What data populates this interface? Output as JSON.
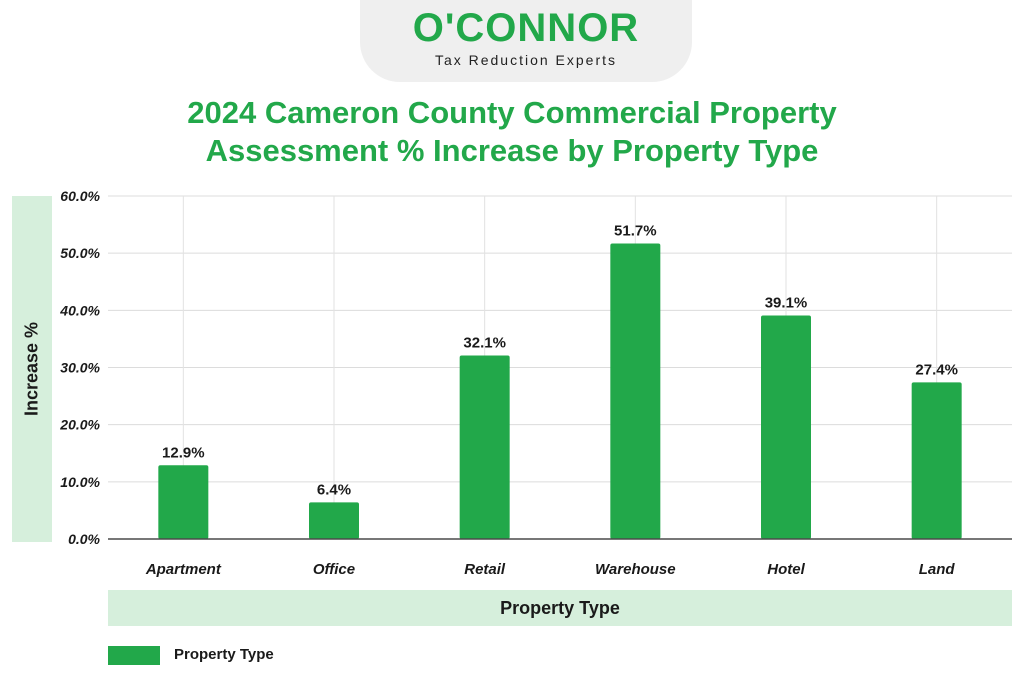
{
  "logo": {
    "name": "O'CONNOR",
    "tagline": "Tax Reduction Experts"
  },
  "colors": {
    "brand_green": "#22a84a",
    "band_green": "#d6efdc",
    "text_dark": "#1a1a1a"
  },
  "chart_data": {
    "type": "bar",
    "title": "2024 Cameron County Commercial Property Assessment % Increase by Property Type",
    "title_lines": [
      "2024 Cameron County Commercial Property",
      "Assessment % Increase by Property Type"
    ],
    "xlabel": "Property Type",
    "ylabel": "Increase %",
    "categories": [
      "Apartment",
      "Office",
      "Retail",
      "Warehouse",
      "Hotel",
      "Land"
    ],
    "series": [
      {
        "name": "Property Type",
        "values": [
          12.9,
          6.4,
          32.1,
          51.7,
          39.1,
          27.4
        ],
        "value_labels": [
          "12.9%",
          "6.4%",
          "32.1%",
          "51.7%",
          "39.1%",
          "27.4%"
        ]
      }
    ],
    "ylim": [
      0,
      60
    ],
    "yticks": [
      0,
      10,
      20,
      30,
      40,
      50,
      60
    ],
    "ytick_labels": [
      "0.0%",
      "10.0%",
      "20.0%",
      "30.0%",
      "40.0%",
      "50.0%",
      "60.0%"
    ],
    "grid": true,
    "legend_position": "bottom-left",
    "legend": [
      "Property Type"
    ]
  }
}
